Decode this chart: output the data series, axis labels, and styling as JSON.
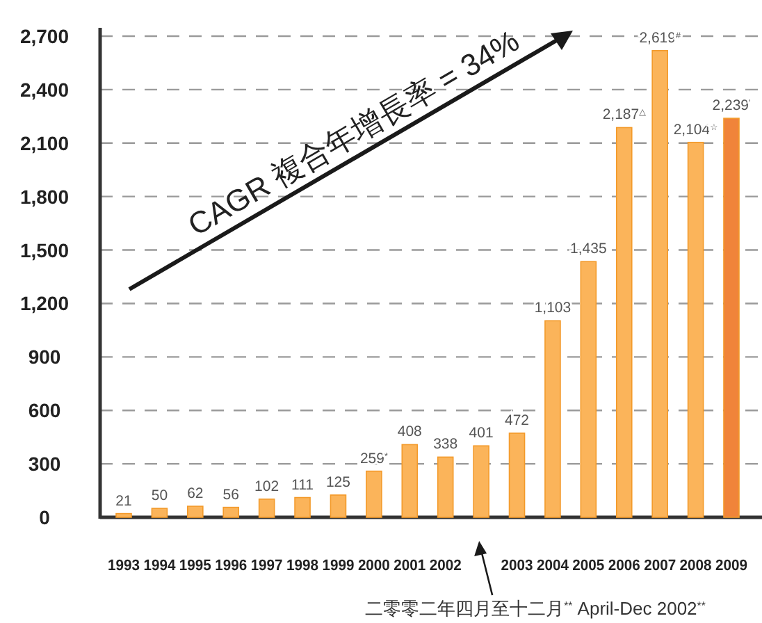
{
  "chart_data": {
    "type": "bar",
    "categories": [
      "1993",
      "1994",
      "1995",
      "1996",
      "1997",
      "1998",
      "1999",
      "2000",
      "2001",
      "2002",
      null,
      "2003",
      "2004",
      "2005",
      "2006",
      "2007",
      "2008",
      "2009"
    ],
    "values": [
      21,
      50,
      62,
      56,
      102,
      111,
      125,
      259,
      408,
      338,
      401,
      472,
      1103,
      1435,
      2187,
      2619,
      2104,
      2239
    ],
    "colors": [
      "#fbb45a",
      "#fbb45a",
      "#fbb45a",
      "#fbb45a",
      "#fbb45a",
      "#fbb45a",
      "#fbb45a",
      "#fbb45a",
      "#fbb45a",
      "#fbb45a",
      "#fbb45a",
      "#fbb45a",
      "#fbb45a",
      "#fbb45a",
      "#fbb45a",
      "#fbb45a",
      "#fbb45a",
      "#f0843a"
    ],
    "value_labels": [
      "21",
      "50",
      "62",
      "56",
      "102",
      "111",
      "125",
      "259$^{*}$",
      "408",
      "338",
      "401",
      "472",
      "1,103",
      "1,435",
      "2,187$^{△}$",
      "2,619$^{#}$",
      "2,104$^{☆}$",
      "2,239$^{'}$"
    ],
    "ylim": [
      0,
      2700
    ],
    "yticks": [
      0,
      300,
      600,
      900,
      {
        "value": 1200,
        "label": "1,200"
      },
      {
        "value": 1500,
        "label": "1,500"
      },
      {
        "value": 1800,
        "label": "1,800"
      },
      {
        "value": 2100,
        "label": "2,100"
      },
      {
        "value": 2400,
        "label": "2,400"
      },
      {
        "value": 2700,
        "label": "2,700"
      }
    ],
    "grid": "y",
    "annotations": [
      "CAGR 複合年增長率 = 34%",
      "二零零二年四月至十二月$^{**}$ April-Dec 2002$^{**}$"
    ]
  }
}
